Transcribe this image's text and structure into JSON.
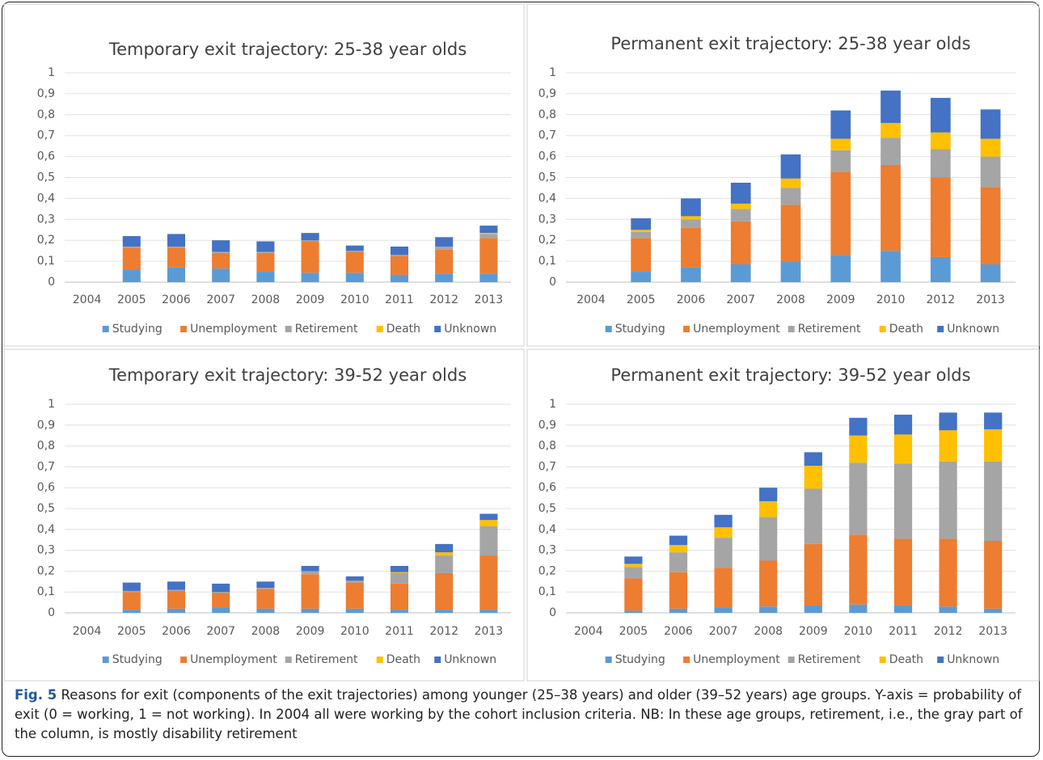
{
  "chart_data": [
    {
      "type": "bar",
      "stacked": true,
      "title": "Temporary exit trajectory: 25-38 year olds",
      "categories": [
        "2004",
        "2005",
        "2006",
        "2007",
        "2008",
        "2009",
        "2010",
        "2011",
        "2012",
        "2013"
      ],
      "ylim": [
        0,
        1
      ],
      "yticks": [
        0,
        {
          "value": 0.1,
          "label": "0,1"
        },
        {
          "value": 0.2,
          "label": "0,2"
        },
        {
          "value": 0.3,
          "label": "0,3"
        },
        {
          "value": 0.4,
          "label": "0,4"
        },
        {
          "value": 0.5,
          "label": "0,5"
        },
        {
          "value": 0.6,
          "label": "0,6"
        },
        {
          "value": 0.7,
          "label": "0,7"
        },
        {
          "value": 0.8,
          "label": "0,8"
        },
        {
          "value": 0.9,
          "label": "0,9"
        },
        1
      ],
      "grid": true,
      "legend": "bottom",
      "series": [
        {
          "name": "Studying",
          "color": "#5b9bd5",
          "values": [
            0,
            0.06,
            0.07,
            0.065,
            0.05,
            0.045,
            0.045,
            0.035,
            0.04,
            0.04
          ]
        },
        {
          "name": "Unemployment",
          "color": "#ed7d31",
          "values": [
            0,
            0.105,
            0.095,
            0.075,
            0.09,
            0.15,
            0.1,
            0.09,
            0.115,
            0.17
          ]
        },
        {
          "name": "Retirement",
          "color": "#a5a5a5",
          "values": [
            0,
            0.005,
            0.005,
            0.005,
            0.005,
            0.005,
            0.005,
            0.005,
            0.015,
            0.02
          ]
        },
        {
          "name": "Death",
          "color": "#ffc000",
          "values": [
            0,
            0,
            0,
            0,
            0,
            0,
            0,
            0,
            0,
            0.005
          ]
        },
        {
          "name": "Unknown",
          "color": "#4472c4",
          "values": [
            0,
            0.05,
            0.06,
            0.055,
            0.05,
            0.035,
            0.025,
            0.04,
            0.045,
            0.035
          ]
        }
      ]
    },
    {
      "type": "bar",
      "stacked": true,
      "title": "Permanent exit trajectory: 25-38 year olds",
      "categories": [
        "2004",
        "2005",
        "2006",
        "2007",
        "2008",
        "2009",
        "2010",
        "2012",
        "2013"
      ],
      "ylim": [
        0,
        1
      ],
      "yticks": [
        0,
        {
          "value": 0.1,
          "label": "0,1"
        },
        {
          "value": 0.2,
          "label": "0,2"
        },
        {
          "value": 0.3,
          "label": "0,3"
        },
        {
          "value": 0.4,
          "label": "0,4"
        },
        {
          "value": 0.5,
          "label": "0,5"
        },
        {
          "value": 0.6,
          "label": "0,6"
        },
        {
          "value": 0.7,
          "label": "0,7"
        },
        {
          "value": 0.8,
          "label": "0,8"
        },
        {
          "value": 0.9,
          "label": "0,9"
        },
        1
      ],
      "grid": true,
      "legend": "bottom",
      "series": [
        {
          "name": "Studying",
          "color": "#5b9bd5",
          "values": [
            0,
            0.05,
            0.07,
            0.085,
            0.1,
            0.13,
            0.15,
            0.12,
            0.085
          ]
        },
        {
          "name": "Unemployment",
          "color": "#ed7d31",
          "values": [
            0,
            0.16,
            0.19,
            0.205,
            0.27,
            0.395,
            0.41,
            0.38,
            0.37
          ]
        },
        {
          "name": "Retirement",
          "color": "#a5a5a5",
          "values": [
            0,
            0.03,
            0.04,
            0.06,
            0.08,
            0.105,
            0.13,
            0.135,
            0.145
          ]
        },
        {
          "name": "Death",
          "color": "#ffc000",
          "values": [
            0,
            0.01,
            0.015,
            0.025,
            0.045,
            0.055,
            0.07,
            0.08,
            0.085
          ]
        },
        {
          "name": "Unknown",
          "color": "#4472c4",
          "values": [
            0,
            0.055,
            0.085,
            0.1,
            0.115,
            0.135,
            0.155,
            0.165,
            0.14
          ]
        }
      ]
    },
    {
      "type": "bar",
      "stacked": true,
      "title": "Temporary exit trajectory: 39-52 year olds",
      "categories": [
        "2004",
        "2005",
        "2006",
        "2007",
        "2008",
        "2009",
        "2010",
        "2011",
        "2012",
        "2013"
      ],
      "ylim": [
        0,
        1
      ],
      "yticks": [
        0,
        {
          "value": 0.1,
          "label": "0,1"
        },
        {
          "value": 0.2,
          "label": "0,2"
        },
        {
          "value": 0.3,
          "label": "0,3"
        },
        {
          "value": 0.4,
          "label": "0,4"
        },
        {
          "value": 0.5,
          "label": "0,5"
        },
        {
          "value": 0.6,
          "label": "0,6"
        },
        {
          "value": 0.7,
          "label": "0,7"
        },
        {
          "value": 0.8,
          "label": "0,8"
        },
        {
          "value": 0.9,
          "label": "0,9"
        },
        1
      ],
      "grid": true,
      "legend": "bottom",
      "series": [
        {
          "name": "Studying",
          "color": "#5b9bd5",
          "values": [
            0,
            0.015,
            0.02,
            0.025,
            0.02,
            0.02,
            0.02,
            0.015,
            0.015,
            0.015
          ]
        },
        {
          "name": "Unemployment",
          "color": "#ed7d31",
          "values": [
            0,
            0.085,
            0.085,
            0.07,
            0.095,
            0.165,
            0.125,
            0.125,
            0.175,
            0.26
          ]
        },
        {
          "name": "Retirement",
          "color": "#a5a5a5",
          "values": [
            0,
            0.005,
            0.005,
            0.005,
            0.005,
            0.015,
            0.01,
            0.05,
            0.085,
            0.14
          ]
        },
        {
          "name": "Death",
          "color": "#ffc000",
          "values": [
            0,
            0,
            0,
            0,
            0,
            0,
            0,
            0.005,
            0.015,
            0.03
          ]
        },
        {
          "name": "Unknown",
          "color": "#4472c4",
          "values": [
            0,
            0.04,
            0.04,
            0.04,
            0.03,
            0.025,
            0.02,
            0.03,
            0.04,
            0.03
          ]
        }
      ]
    },
    {
      "type": "bar",
      "stacked": true,
      "title": "Permanent exit trajectory: 39-52 year olds",
      "categories": [
        "2004",
        "2005",
        "2006",
        "2007",
        "2008",
        "2009",
        "2010",
        "2011",
        "2012",
        "2013"
      ],
      "ylim": [
        0,
        1
      ],
      "yticks": [
        0,
        {
          "value": 0.1,
          "label": "0,1"
        },
        {
          "value": 0.2,
          "label": "0,2"
        },
        {
          "value": 0.3,
          "label": "0,3"
        },
        {
          "value": 0.4,
          "label": "0,4"
        },
        {
          "value": 0.5,
          "label": "0,5"
        },
        {
          "value": 0.6,
          "label": "0,6"
        },
        {
          "value": 0.7,
          "label": "0,7"
        },
        {
          "value": 0.8,
          "label": "0,8"
        },
        {
          "value": 0.9,
          "label": "0,9"
        },
        1
      ],
      "grid": true,
      "legend": "bottom",
      "series": [
        {
          "name": "Studying",
          "color": "#5b9bd5",
          "values": [
            0,
            0.01,
            0.02,
            0.025,
            0.03,
            0.035,
            0.04,
            0.035,
            0.03,
            0.02
          ]
        },
        {
          "name": "Unemployment",
          "color": "#ed7d31",
          "values": [
            0,
            0.155,
            0.175,
            0.19,
            0.22,
            0.295,
            0.335,
            0.32,
            0.325,
            0.325
          ]
        },
        {
          "name": "Retirement",
          "color": "#a5a5a5",
          "values": [
            0,
            0.055,
            0.095,
            0.145,
            0.21,
            0.265,
            0.345,
            0.36,
            0.37,
            0.38
          ]
        },
        {
          "name": "Death",
          "color": "#ffc000",
          "values": [
            0,
            0.015,
            0.035,
            0.05,
            0.075,
            0.11,
            0.13,
            0.14,
            0.15,
            0.155
          ]
        },
        {
          "name": "Unknown",
          "color": "#4472c4",
          "values": [
            0,
            0.035,
            0.045,
            0.06,
            0.065,
            0.065,
            0.085,
            0.095,
            0.085,
            0.08
          ]
        }
      ]
    }
  ],
  "caption": {
    "label": "Fig. 5",
    "text": "Reasons for exit (components of the exit trajectories) among younger (25–38 years) and older (39–52 years) age groups. Y-axis = probability of exit (0 = working, 1 = not working). In 2004 all were working by the cohort inclusion criteria. NB: In these age groups, retirement, i.e., the gray part of the column, is mostly disability retirement"
  }
}
